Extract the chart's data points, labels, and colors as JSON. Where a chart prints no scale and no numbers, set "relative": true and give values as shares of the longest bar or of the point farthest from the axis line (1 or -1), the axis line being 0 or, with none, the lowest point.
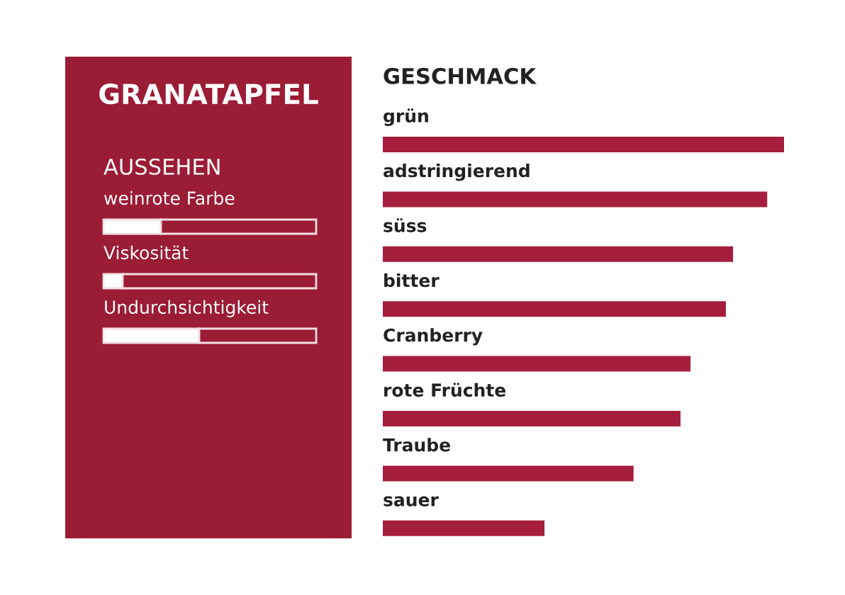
{
  "chart_data": [
    {
      "type": "bar",
      "orientation": "horizontal",
      "stacked": true,
      "relative": true,
      "title": "GRANATAPFEL",
      "subtitle": "AUSSEHEN",
      "categories": [
        "weinrote Farbe",
        "Viskosität",
        "Undurchsichtigkeit"
      ],
      "series": [
        {
          "color": "#ffffff",
          "values": [
            0.27,
            0.09,
            0.45
          ]
        },
        {
          "color": "#9b1c35",
          "values": [
            0.73,
            0.91,
            0.55
          ]
        }
      ]
    },
    {
      "type": "bar",
      "orientation": "horizontal",
      "relative": true,
      "title": "GESCHMACK",
      "categories": [
        "grün",
        "adstringierend",
        "süss",
        "bitter",
        "Cranberry",
        "rote Früchte",
        "Traube",
        "sauer"
      ],
      "color": "#a61e3d",
      "values": [
        1,
        0.958,
        0.873,
        0.855,
        0.767,
        0.742,
        0.625,
        0.403
      ]
    }
  ]
}
